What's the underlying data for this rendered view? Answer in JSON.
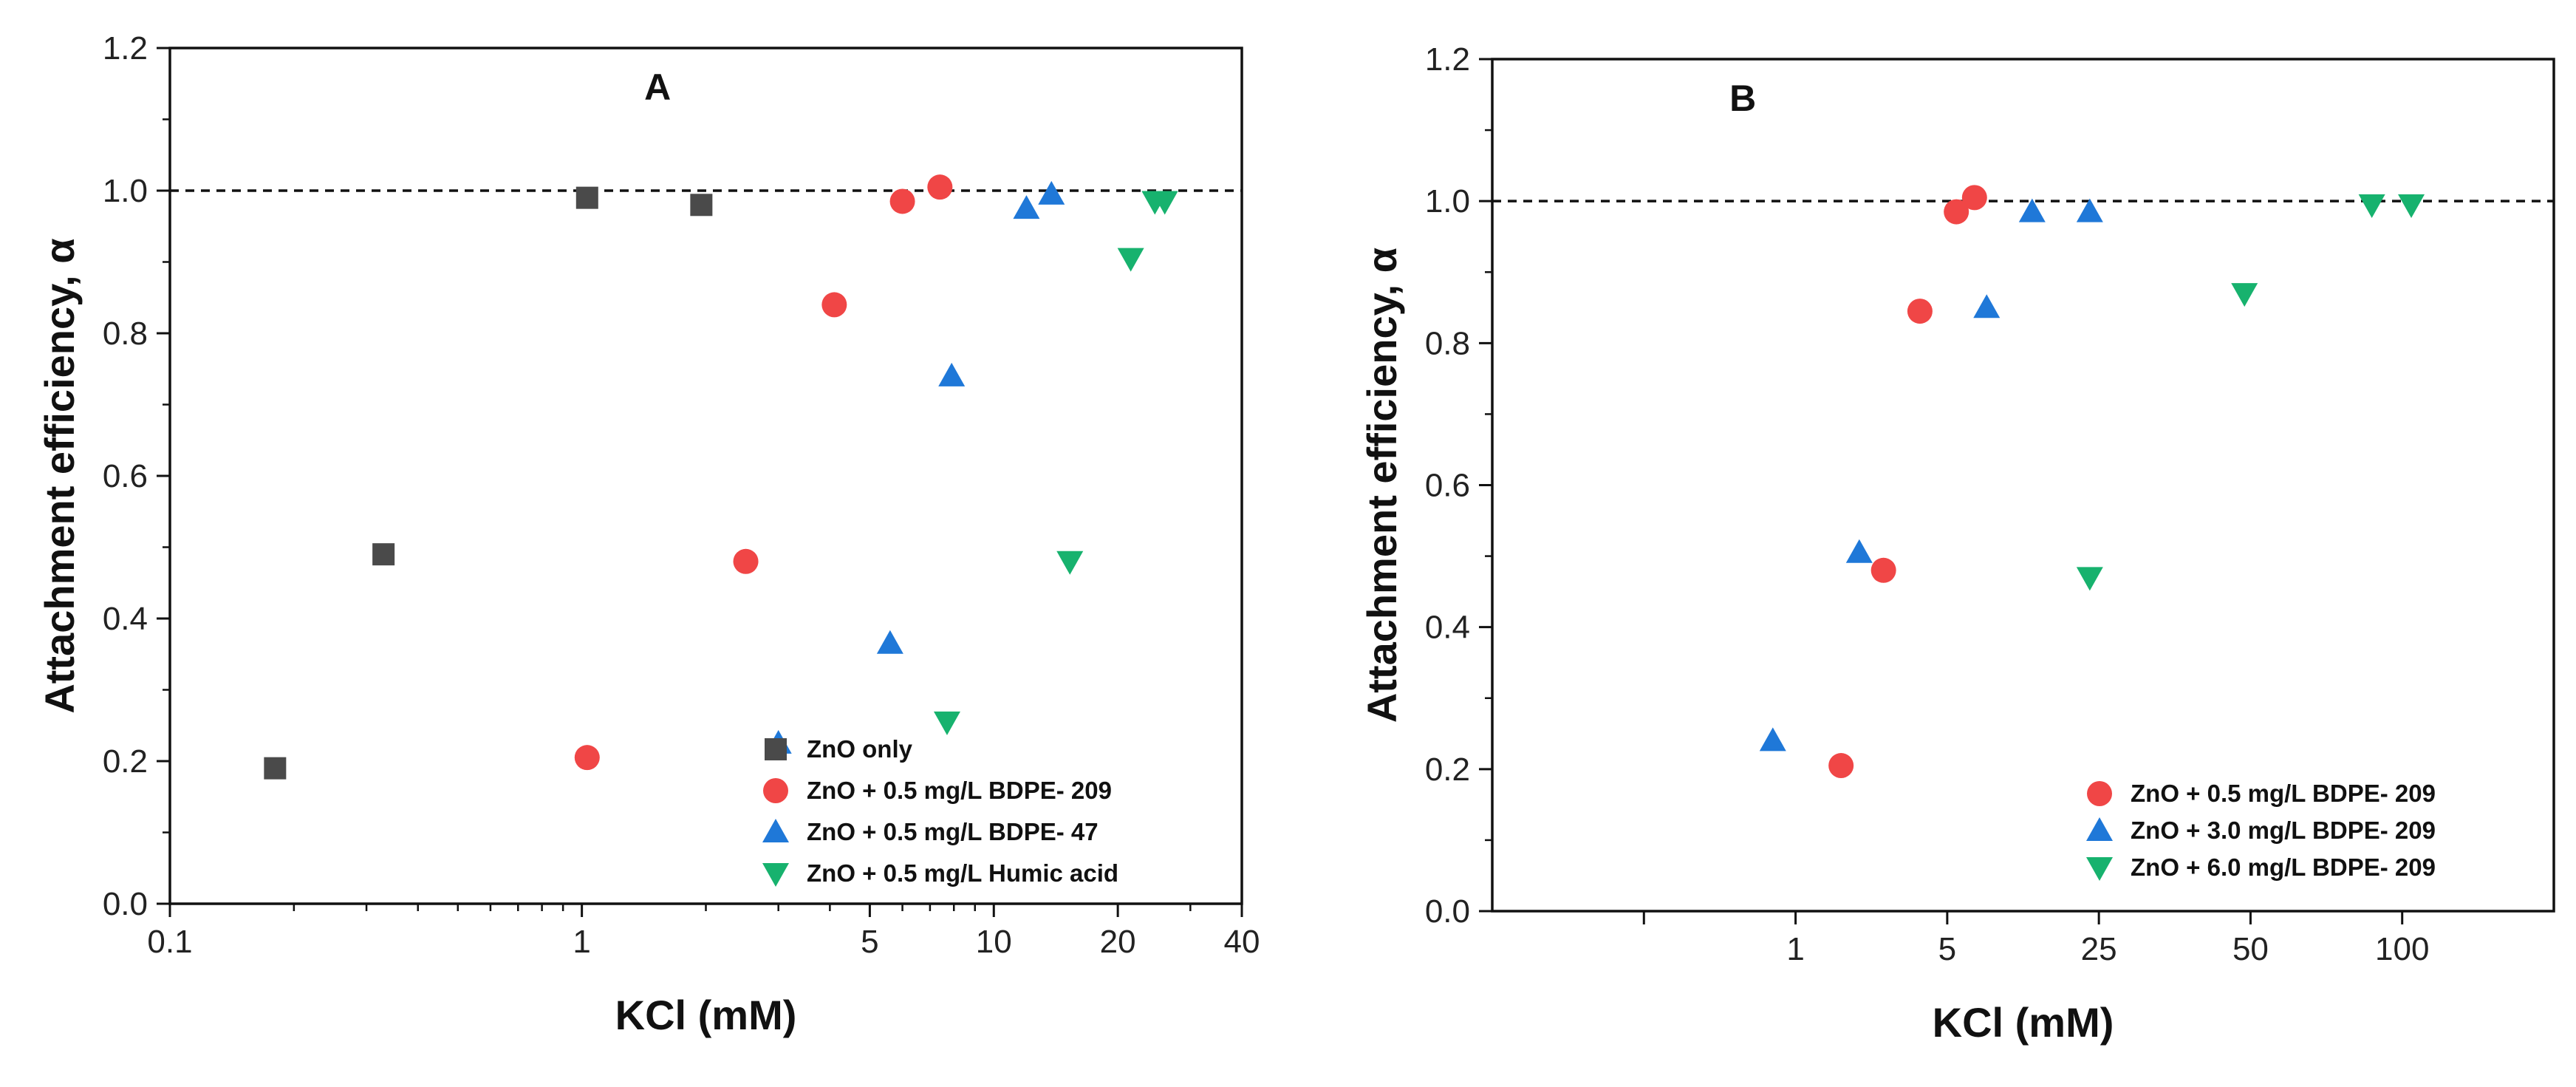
{
  "chart_data": [
    {
      "type": "scatter",
      "title": "A",
      "xlabel": "KCl (mM)",
      "ylabel": "Attachment efficiency, α",
      "xscale": "log",
      "xlim": [
        0.1,
        40
      ],
      "ylim": [
        0,
        1.2
      ],
      "xticks": [
        0.1,
        1,
        5,
        10,
        20,
        40
      ],
      "xtick_labels": [
        "0.1",
        "1",
        "5",
        "10",
        "20",
        "40"
      ],
      "yticks": [
        0,
        0.2,
        0.4,
        0.6,
        0.8,
        1.0,
        1.2
      ],
      "ytick_labels": [
        "0.0",
        "0.2",
        "0.4",
        "0.6",
        "0.8",
        "1.0",
        "1.2"
      ],
      "reference_line": 1.0,
      "legend_position": "bottom-right",
      "series": [
        {
          "name": "ZnO only",
          "marker": "square",
          "color": "#4a4a4a",
          "x": [
            0.18,
            0.33,
            1.03,
            1.95
          ],
          "y": [
            0.19,
            0.49,
            0.99,
            0.98
          ]
        },
        {
          "name": "ZnO + 0.5 mg/L BDPE- 209",
          "marker": "circle",
          "color": "#f04646",
          "x": [
            1.03,
            2.5,
            4.1,
            6.0,
            7.4
          ],
          "y": [
            0.205,
            0.48,
            0.84,
            0.985,
            1.005
          ]
        },
        {
          "name": "ZnO + 0.5 mg/L BDPE- 47",
          "marker": "triangle-up",
          "color": "#1f78d8",
          "x": [
            3.0,
            5.6,
            7.9,
            12.0,
            13.8
          ],
          "y": [
            0.225,
            0.365,
            0.74,
            0.975,
            0.995
          ]
        },
        {
          "name": "ZnO + 0.5 mg/L Humic acid",
          "marker": "triangle-down",
          "color": "#17b26e",
          "x": [
            7.7,
            15.3,
            21.5,
            24.6,
            26.0
          ],
          "y": [
            0.255,
            0.48,
            0.905,
            0.985,
            0.985
          ]
        }
      ]
    },
    {
      "type": "scatter",
      "title": "B",
      "xlabel": "KCl (mM)",
      "ylabel": "Attachment efficiency, α",
      "xscale": "categorical-positions",
      "xlim": [
        0,
        7
      ],
      "ylim": [
        0,
        1.2
      ],
      "xticks": [
        1,
        2,
        3,
        4,
        5,
        6
      ],
      "xtick_labels": [
        "",
        "1",
        "5",
        "25",
        "50",
        "100"
      ],
      "yticks": [
        0,
        0.2,
        0.4,
        0.6,
        0.8,
        1.0,
        1.2
      ],
      "ytick_labels": [
        "0.0",
        "0.2",
        "0.4",
        "0.6",
        "0.8",
        "1.0",
        "1.2"
      ],
      "reference_line": 1.0,
      "legend_position": "bottom-right",
      "series": [
        {
          "name": "ZnO + 0.5 mg/L BDPE- 209",
          "marker": "circle",
          "color": "#f04646",
          "x": [
            2.3,
            2.58,
            2.82,
            3.06,
            3.18
          ],
          "y": [
            0.205,
            0.48,
            0.845,
            0.985,
            1.005
          ]
        },
        {
          "name": "ZnO + 3.0 mg/L BDPE- 209",
          "marker": "triangle-up",
          "color": "#1f78d8",
          "x": [
            1.85,
            2.42,
            3.26,
            3.56,
            3.94
          ],
          "y": [
            0.24,
            0.505,
            0.85,
            0.985,
            0.985
          ]
        },
        {
          "name": "ZnO + 6.0 mg/L BDPE- 209",
          "marker": "triangle-down",
          "color": "#17b26e",
          "x": [
            3.94,
            4.96,
            5.8,
            6.06
          ],
          "y": [
            0.47,
            0.87,
            0.995,
            0.995
          ]
        }
      ]
    }
  ]
}
